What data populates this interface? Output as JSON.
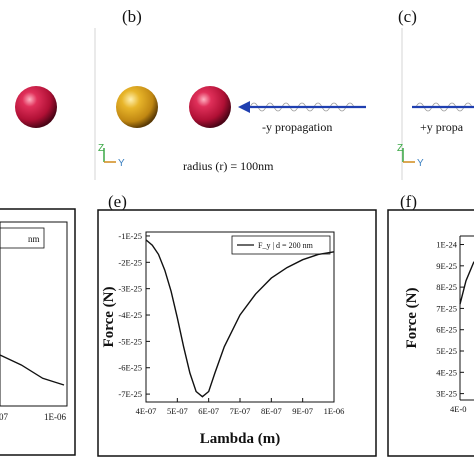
{
  "top_row": {
    "panel_b": {
      "label": "(b)",
      "annotation": "-y propagation",
      "radius_caption": "radius (r) = 100nm"
    },
    "panel_c": {
      "label": "(c)",
      "annotation": "+y propa"
    },
    "axes_triad": {
      "z": "Z",
      "y": "Y"
    }
  },
  "colors": {
    "red_sphere": "#c8123f",
    "gold_sphere": "#d9a21b",
    "arrow": "#1f3fb0",
    "triad_z": "#3aa845",
    "triad_y": "#d08a1a"
  },
  "bottom_row": {
    "panel_d": {
      "legend_fragment": "nm",
      "x_tick_fragment": [
        "-07",
        "1E-06"
      ]
    },
    "panel_e": {
      "label": "(e)"
    },
    "panel_f": {
      "label": "(f)"
    }
  },
  "chart_data": [
    {
      "type": "line",
      "panel": "e",
      "xlabel": "Lambda (m)",
      "ylabel": "Force (N)",
      "xlim": [
        4e-07,
        1e-06
      ],
      "ylim": [
        -7.3e-25,
        -8.5e-26
      ],
      "x_tick_labels": [
        "4E-07",
        "5E-07",
        "6E-07",
        "7E-07",
        "8E-07",
        "9E-07",
        "1E-06"
      ],
      "x_ticks": [
        4e-07,
        5e-07,
        6e-07,
        7e-07,
        8e-07,
        9e-07,
        1e-06
      ],
      "y_tick_labels": [
        "-1E-25",
        "-2E-25",
        "-3E-25",
        "-4E-25",
        "-5E-25",
        "-6E-25",
        "-7E-25"
      ],
      "y_ticks": [
        -1e-25,
        -2e-25,
        -3e-25,
        -4e-25,
        -5e-25,
        -6e-25,
        -7e-25
      ],
      "legend": {
        "label": "F_y | d = 200 nm",
        "placement": "top-right"
      },
      "series": [
        {
          "x": [
            4e-07,
            4.2e-07,
            4.4e-07,
            4.6e-07,
            4.8e-07,
            5e-07,
            5.2e-07,
            5.4e-07,
            5.6e-07,
            5.8e-07,
            6e-07,
            6.2e-07,
            6.5e-07,
            7e-07,
            7.5e-07,
            8e-07,
            8.5e-07,
            9e-07,
            9.5e-07,
            1e-06
          ],
          "y": [
            -1.15e-25,
            -1.35e-25,
            -1.7e-25,
            -2.3e-25,
            -3.1e-25,
            -4.1e-25,
            -5.2e-25,
            -6.2e-25,
            -6.9e-25,
            -7.1e-25,
            -6.9e-25,
            -6.2e-25,
            -5.2e-25,
            -4e-25,
            -3.2e-25,
            -2.6e-25,
            -2.2e-25,
            -1.9e-25,
            -1.7e-25,
            -1.6e-25
          ]
        }
      ]
    },
    {
      "type": "line",
      "panel": "f",
      "ylabel": "Force (N)",
      "ylim": [
        2.7e-25,
        1.04e-24
      ],
      "y_tick_labels": [
        "1E-24",
        "9E-25",
        "8E-25",
        "7E-25",
        "6E-25",
        "5E-25",
        "4E-25",
        "3E-25"
      ],
      "y_ticks": [
        1e-24,
        9e-25,
        8e-25,
        7e-25,
        6e-25,
        5e-25,
        4e-25,
        3e-25
      ],
      "x_tick_labels": [
        "4E-0"
      ],
      "series": [
        {
          "x": [
            4e-07,
            4.1e-07,
            4.2e-07
          ],
          "y": [
            7.2e-25,
            8.3e-25,
            9.2e-25
          ]
        }
      ]
    },
    {
      "type": "line",
      "panel": "d",
      "series": [
        {
          "x": [
            0,
            1,
            2,
            3
          ],
          "y": [
            0.4,
            0.55,
            0.75,
            0.85
          ]
        }
      ]
    }
  ]
}
